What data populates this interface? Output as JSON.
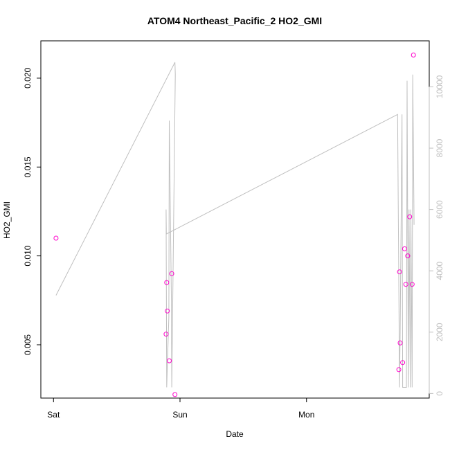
{
  "chart_data": {
    "type": "scatter",
    "title": "ATOM4 Northeast_Pacific_2 HO2_GMI",
    "xlabel": "Date",
    "ylabel": "HO2_GMI",
    "x_ticks": [
      "Sat",
      "Sun",
      "Mon"
    ],
    "x_tick_positions_days": [
      0,
      1,
      2
    ],
    "xlim_days": [
      -0.1,
      2.97
    ],
    "ylim": [
      0.002,
      0.0221
    ],
    "y_ticks": [
      0.005,
      0.01,
      0.015,
      0.02
    ],
    "y_tick_labels": [
      "0.005",
      "0.010",
      "0.015",
      "0.020"
    ],
    "y2lim": [
      -150,
      11500
    ],
    "y2_ticks": [
      0,
      2000,
      4000,
      6000,
      8000,
      10000
    ],
    "y2_tick_labels": [
      "0",
      "2000",
      "4000",
      "6000",
      "8000",
      "10000"
    ],
    "grid": false,
    "legend": "none",
    "colors": {
      "points": "#ff00cc",
      "line": "#bfbfbf",
      "right_axis": "#bfbfbf",
      "axis": "#000000"
    },
    "series": [
      {
        "kind": "points",
        "axis": "left",
        "x_days": [
          0.02,
          0.89,
          0.895,
          0.9,
          0.915,
          0.935,
          0.96,
          2.73,
          2.735,
          2.74,
          2.76,
          2.775,
          2.785,
          2.8,
          2.815,
          2.835,
          2.845
        ],
        "y": [
          0.011,
          0.0056,
          0.0085,
          0.0069,
          0.0041,
          0.009,
          0.0022,
          0.0036,
          0.0091,
          0.0051,
          0.004,
          0.0104,
          0.0084,
          0.01,
          0.0122,
          0.0084,
          0.0213
        ]
      },
      {
        "kind": "line",
        "axis": "right",
        "x_days": [
          0.02,
          0.96,
          0.963,
          0.935,
          0.932,
          0.915,
          0.912,
          0.895,
          0.89,
          0.892,
          2.72,
          2.735,
          2.74,
          2.755,
          2.76,
          2.79,
          2.795,
          2.805,
          2.81,
          2.82,
          2.825,
          2.835,
          2.84,
          2.85
        ],
        "y2": [
          3200,
          10800,
          10400,
          200,
          3000,
          8900,
          2500,
          200,
          6000,
          5200,
          9100,
          200,
          2000,
          9100,
          200,
          200,
          10200,
          200,
          6000,
          200,
          6000,
          200,
          10400,
          5500
        ]
      }
    ]
  }
}
